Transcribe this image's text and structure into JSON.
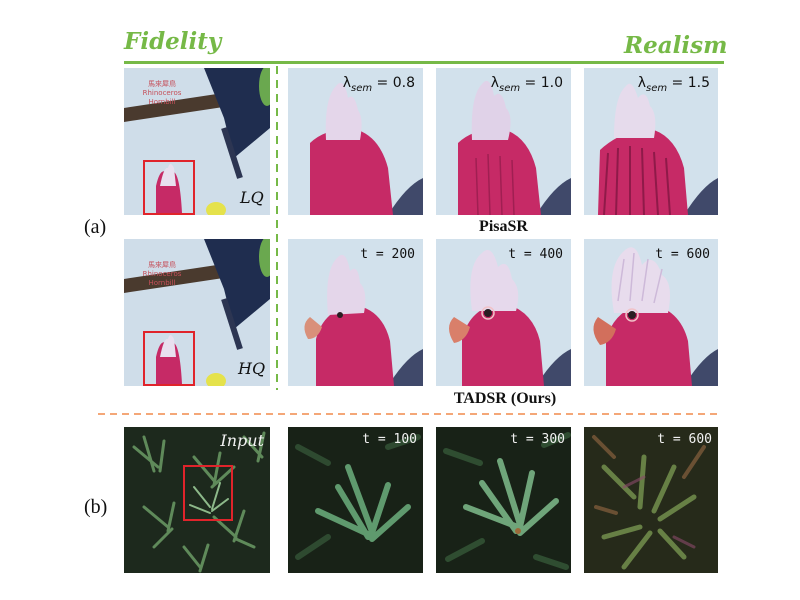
{
  "header": {
    "left": "Fidelity",
    "right": "Realism"
  },
  "row_labels": {
    "a": "(a)",
    "b": "(b)"
  },
  "sign_text": [
    "馬來犀鳥",
    "Rhinoceros",
    "Hornbill"
  ],
  "row1": {
    "thumb_label": "LQ",
    "panels": [
      {
        "lambda_sym": "λ",
        "sub": "sem",
        "value": "= 0.8"
      },
      {
        "lambda_sym": "λ",
        "sub": "sem",
        "value": "= 1.0"
      },
      {
        "lambda_sym": "λ",
        "sub": "sem",
        "value": "= 1.5"
      }
    ],
    "caption": "PisaSR"
  },
  "row2": {
    "thumb_label": "HQ",
    "panels": [
      {
        "label": "t = 200"
      },
      {
        "label": "t = 400"
      },
      {
        "label": "t = 600"
      }
    ],
    "caption": "TADSR (Ours)"
  },
  "row3": {
    "thumb_label": "Input",
    "panels": [
      {
        "label": "t = 100"
      },
      {
        "label": "t = 300"
      },
      {
        "label": "t = 600"
      }
    ]
  },
  "colors": {
    "header_green": "#76b947",
    "divider_orange": "#f08a4b",
    "box_red": "#e0242b",
    "crest_pink": "#c62a66"
  }
}
